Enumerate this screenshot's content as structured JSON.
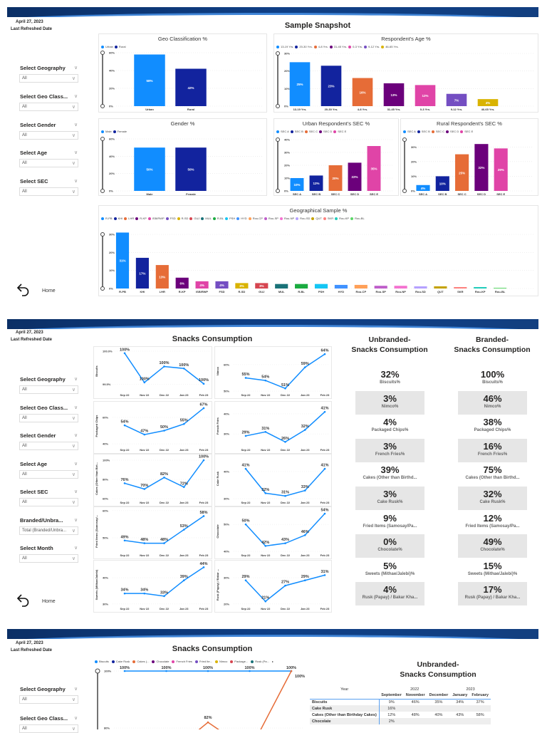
{
  "meta": {
    "date": "April 27, 2023",
    "refreshed_label": "Last Refreshed Date",
    "home_label": "Home"
  },
  "page1": {
    "title": "Sample Snapshot",
    "slicers": [
      {
        "label": "Select Geography",
        "value": "All"
      },
      {
        "label": "Select Geo Class...",
        "value": "All"
      },
      {
        "label": "Select Gender",
        "value": "All"
      },
      {
        "label": "Select Age",
        "value": "All"
      },
      {
        "label": "Select SEC",
        "value": "All"
      }
    ]
  },
  "page2": {
    "title": "Snacks Consumption",
    "slicers": [
      {
        "label": "Select Geography",
        "value": "All"
      },
      {
        "label": "Select Geo Class...",
        "value": "All"
      },
      {
        "label": "Select Gender",
        "value": "All"
      },
      {
        "label": "Select Age",
        "value": "All"
      },
      {
        "label": "Select SEC",
        "value": "All"
      },
      {
        "label": "Branded/Unbra...",
        "value": "Total (Branded/Unbra..."
      },
      {
        "label": "Select Month",
        "value": "All"
      }
    ],
    "unbranded_title": [
      "Unbranded-",
      "Snacks Consumption"
    ],
    "branded_title": [
      "Branded-",
      "Snacks Consumption"
    ],
    "kpi_labels": [
      "Biscuits%",
      "Nimco%",
      "Packaged Chips%",
      "French Fries%",
      "Cakes (Other than Birthd...",
      "Cake Rusk%",
      "Fried Items (Samosay/Pa...",
      "Chocolate%",
      "Sweets (Mithae/Jalebi)%",
      "Rusk (Papay) / Bakar Kha..."
    ],
    "unbranded_values": [
      "32%",
      "3%",
      "4%",
      "3%",
      "39%",
      "3%",
      "9%",
      "0%",
      "5%",
      "4%"
    ],
    "branded_values": [
      "100%",
      "46%",
      "38%",
      "16%",
      "75%",
      "32%",
      "12%",
      "49%",
      "15%",
      "17%"
    ]
  },
  "page3": {
    "title": "Snacks Consumption",
    "slicers": [
      {
        "label": "Select Geography",
        "value": "All"
      },
      {
        "label": "Select Geo Class...",
        "value": "All"
      }
    ],
    "table_title": [
      "Unbranded-",
      "Snacks Consumption"
    ],
    "table": {
      "year_header": "Year",
      "years": [
        {
          "label": "2022",
          "span": 3
        },
        {
          "label": "2023",
          "span": 2
        }
      ],
      "months": [
        "September",
        "November",
        "December",
        "January",
        "February"
      ],
      "rows": [
        {
          "name": "Biscuits",
          "values": [
            "9%",
            "46%",
            "35%",
            "34%",
            "37%"
          ]
        },
        {
          "name": "Cake Rusk",
          "values": [
            "16%",
            "",
            "",
            "",
            ""
          ]
        },
        {
          "name": "Cakes (Other than Birthday Cakes)",
          "values": [
            "12%",
            "48%",
            "40%",
            "43%",
            "58%"
          ]
        },
        {
          "name": "Chocolate",
          "values": [
            "2%",
            "",
            "",
            "",
            ""
          ]
        }
      ]
    }
  },
  "chart_data": [
    {
      "id": "geo",
      "type": "bar",
      "title": "Geo Classification %",
      "categories": [
        "Urban",
        "Rural"
      ],
      "values": [
        58,
        42
      ],
      "labels": [
        "58%",
        "42%"
      ],
      "colors": [
        "#118DFF",
        "#12239E"
      ],
      "legend": [
        "Urban",
        "Rural"
      ],
      "ylim": [
        0,
        60
      ],
      "ticks": [
        0,
        20,
        40,
        60
      ],
      "grid": true,
      "legend_position": "top-left"
    },
    {
      "id": "age",
      "type": "bar",
      "title": "Respondent's Age %",
      "categories": [
        "13-19 Yrs.",
        "20-30 Yrs.",
        "4-8 Yrs.",
        "31-45 Yrs.",
        "0-3 Yrs.",
        "9-12 Yrs.",
        "46-65 Yrs."
      ],
      "values": [
        25,
        23,
        16,
        13,
        12,
        7,
        4
      ],
      "labels": [
        "25%",
        "23%",
        "16%",
        "13%",
        "12%",
        "7%",
        "4%"
      ],
      "colors": [
        "#118DFF",
        "#12239E",
        "#E66C37",
        "#6B007B",
        "#E044A7",
        "#744EC2",
        "#D9B300"
      ],
      "legend": [
        "13-19 Yrs.",
        "20-30 Yrs.",
        "4-8 Yrs.",
        "31-45 Yrs.",
        "0-3 Yrs.",
        "9-12 Yrs.",
        "46-65 Yrs."
      ],
      "ylim": [
        0,
        30
      ],
      "ticks": [
        0,
        10,
        20,
        30
      ],
      "grid": true,
      "legend_position": "top-left"
    },
    {
      "id": "gender",
      "type": "bar",
      "title": "Gender %",
      "categories": [
        "Male",
        "Female"
      ],
      "values": [
        50,
        50
      ],
      "labels": [
        "50%",
        "50%"
      ],
      "colors": [
        "#118DFF",
        "#12239E"
      ],
      "legend": [
        "Male",
        "Female"
      ],
      "ylim": [
        0,
        60
      ],
      "ticks": [
        0,
        20,
        40,
        60
      ],
      "grid": true,
      "legend_position": "top-left"
    },
    {
      "id": "urban_sec",
      "type": "bar",
      "title": "Urban Respondent's SEC %",
      "categories": [
        "SEC A",
        "SEC B",
        "SEC C",
        "SEC D",
        "SEC E"
      ],
      "values": [
        10,
        12,
        20,
        22,
        35
      ],
      "labels": [
        "10%",
        "12%",
        "20%",
        "22%",
        "35%"
      ],
      "colors": [
        "#118DFF",
        "#12239E",
        "#E66C37",
        "#6B007B",
        "#E044A7"
      ],
      "legend": [
        "SEC A",
        "SEC B",
        "SEC C",
        "SEC D",
        "SEC E"
      ],
      "ylim": [
        0,
        40
      ],
      "ticks": [
        0,
        10,
        20,
        30,
        40
      ],
      "grid": true,
      "legend_position": "top-left"
    },
    {
      "id": "rural_sec",
      "type": "bar",
      "title": "Rural Respondent's SEC %",
      "categories": [
        "SEC A",
        "SEC B",
        "SEC C",
        "SEC D",
        "SEC E"
      ],
      "values": [
        4,
        10,
        25,
        32,
        29
      ],
      "labels": [
        "4%",
        "10%",
        "25%",
        "32%",
        "29%"
      ],
      "colors": [
        "#118DFF",
        "#12239E",
        "#E66C37",
        "#6B007B",
        "#E044A7"
      ],
      "legend": [
        "SEC A",
        "SEC B",
        "SEC C",
        "SEC D",
        "SEC E"
      ],
      "ylim": [
        0,
        35
      ],
      "ticks": [
        0,
        10,
        20,
        30
      ],
      "grid": true,
      "legend_position": "top-left"
    },
    {
      "id": "geo_sample",
      "type": "bar",
      "title": "Geographical Sample %",
      "categories": [
        "R-PB",
        "KHI",
        "LHR",
        "R-KP",
        "ISB/RWP",
        "FSD",
        "R-SD",
        "GUJ",
        "MUL",
        "R-BL",
        "PSH",
        "HYD",
        "Rou-CP",
        "Rou-SP",
        "Rou-NP",
        "Rou-SD",
        "QUT",
        "SKR",
        "Rou-KP",
        "Rou-BL"
      ],
      "values": [
        31,
        17,
        13,
        6,
        4,
        4,
        3,
        3,
        2.5,
        2.5,
        2.5,
        2,
        2,
        1.5,
        1.5,
        1.2,
        1.2,
        0.8,
        0.8,
        0.4
      ],
      "labels": [
        "31%",
        "17%",
        "13%",
        "6%",
        "4%",
        "4%",
        "3%",
        "3%",
        "",
        "",
        "",
        "",
        "",
        "",
        "",
        "",
        "",
        "",
        "",
        ""
      ],
      "colors": [
        "#118DFF",
        "#12239E",
        "#E66C37",
        "#6B007B",
        "#E044A7",
        "#744EC2",
        "#D9B300",
        "#D64550",
        "#197278",
        "#1AAB40",
        "#15C6F4",
        "#4092FF",
        "#FFA058",
        "#BE5DC9",
        "#F472D0",
        "#B5A1FF",
        "#C4A200",
        "#FD817E",
        "#22CCBB",
        "#5BD667"
      ],
      "legend": [
        "R-PB",
        "KHI",
        "LHR",
        "R-KP",
        "ISB/RWP",
        "FSD",
        "R-SD",
        "GUJ",
        "MUL",
        "R-BL",
        "PSH",
        "HYD",
        "Rou-CP",
        "Rou-SP",
        "Rou-NP",
        "Rou-SD",
        "QUT",
        "SKR",
        "Rou-KP",
        "Rou-BL"
      ],
      "ylim": [
        0,
        30
      ],
      "ticks": [
        0,
        10,
        20,
        30
      ],
      "grid": true,
      "legend_position": "top-left"
    },
    {
      "id": "l_biscuits",
      "type": "line",
      "ylabel": "Biscuits",
      "x": [
        "Sep 22",
        "Nov 22",
        "Dec 22",
        "Jan 23",
        "Feb 23"
      ],
      "values": [
        99.97,
        99.53,
        99.77,
        99.74,
        99.51
      ],
      "labels": [
        "100%",
        "100%",
        "100%",
        "100%",
        "100%"
      ],
      "ylim": [
        99.4,
        100.0
      ],
      "ticks": [
        99.5,
        100.0
      ],
      "tick_labels": [
        "99.5%",
        "100.0%"
      ],
      "color": "#118DFF"
    },
    {
      "id": "l_nimco",
      "type": "line",
      "ylabel": "Nimco",
      "x": [
        "Sep 22",
        "Nov 22",
        "Dec 22",
        "Jan 23",
        "Feb 23"
      ],
      "values": [
        55,
        54,
        51,
        59,
        64
      ],
      "labels": [
        "55%",
        "54%",
        "51%",
        "59%",
        "64%"
      ],
      "ylim": [
        50,
        65.1
      ],
      "ticks": [
        50,
        60
      ],
      "tick_labels": [
        "50%",
        "60%"
      ],
      "color": "#118DFF"
    },
    {
      "id": "l_chips",
      "type": "line",
      "ylabel": "Packaged Chips",
      "x": [
        "Sep 22",
        "Nov 22",
        "Dec 22",
        "Jan 23",
        "Feb 23"
      ],
      "values": [
        54,
        47,
        50,
        55,
        67
      ],
      "labels": [
        "54%",
        "47%",
        "50%",
        "55%",
        "67%"
      ],
      "ylim": [
        38.4,
        68.6
      ],
      "ticks": [
        40,
        60
      ],
      "tick_labels": [
        "40%",
        "60%"
      ],
      "color": "#118DFF"
    },
    {
      "id": "l_fries",
      "type": "line",
      "ylabel": "French Fries",
      "x": [
        "Sep 22",
        "Nov 22",
        "Dec 22",
        "Jan 23",
        "Feb 23"
      ],
      "values": [
        29,
        31,
        26,
        32,
        41
      ],
      "labels": [
        "29%",
        "31%",
        "26%",
        "32%",
        "41%"
      ],
      "ylim": [
        24,
        43.9
      ],
      "ticks": [
        30,
        40
      ],
      "tick_labels": [
        "30%",
        "40%"
      ],
      "color": "#118DFF"
    },
    {
      "id": "l_cakes",
      "type": "line",
      "ylabel": "Cakes (Other than Birt...",
      "x": [
        "Sep 22",
        "Nov 22",
        "Dec 22",
        "Jan 23",
        "Feb 23"
      ],
      "values": [
        76,
        70,
        82,
        72,
        100
      ],
      "labels": [
        "76%",
        "70%",
        "82%",
        "72%",
        "100%"
      ],
      "ylim": [
        60,
        101.5
      ],
      "ticks": [
        60,
        80,
        100
      ],
      "tick_labels": [
        "60%",
        "80%",
        "100%"
      ],
      "color": "#118DFF"
    },
    {
      "id": "l_cakerusk",
      "type": "line",
      "ylabel": "Cake Rusk",
      "x": [
        "Sep 22",
        "Nov 22",
        "Dec 22",
        "Jan 23",
        "Feb 23"
      ],
      "values": [
        41,
        32,
        31,
        33,
        41
      ],
      "labels": [
        "41%",
        "32%",
        "31%",
        "33%",
        "41%"
      ],
      "ylim": [
        30,
        44.7
      ],
      "ticks": [
        30,
        40
      ],
      "tick_labels": [
        "30%",
        "40%"
      ],
      "color": "#118DFF"
    },
    {
      "id": "l_fried",
      "type": "line",
      "ylabel": "Fried Items (Samosay/...",
      "x": [
        "Sep 22",
        "Nov 22",
        "Dec 22",
        "Jan 23",
        "Feb 23"
      ],
      "values": [
        49,
        48,
        48,
        53,
        58
      ],
      "labels": [
        "49%",
        "48%",
        "48%",
        "53%",
        "58%"
      ],
      "ylim": [
        45,
        59.7
      ],
      "ticks": [
        50,
        60
      ],
      "tick_labels": [
        "50%",
        "60%"
      ],
      "color": "#118DFF"
    },
    {
      "id": "l_choc",
      "type": "line",
      "ylabel": "Chocolate",
      "x": [
        "Sep 22",
        "Nov 22",
        "Dec 22",
        "Jan 23",
        "Feb 23"
      ],
      "values": [
        50,
        42,
        43,
        46,
        54
      ],
      "labels": [
        "50%",
        "42%",
        "43%",
        "46%",
        "54%"
      ],
      "ylim": [
        40,
        54.8
      ],
      "ticks": [
        40,
        50
      ],
      "tick_labels": [
        "40%",
        "50%"
      ],
      "color": "#118DFF"
    },
    {
      "id": "l_sweets",
      "type": "line",
      "ylabel": "Sweets (Mithae/Jalebi)",
      "x": [
        "Sep 22",
        "Nov 22",
        "Dec 22",
        "Jan 23",
        "Feb 23"
      ],
      "values": [
        34,
        34,
        33,
        39,
        44
      ],
      "labels": [
        "34%",
        "34%",
        "33%",
        "39%",
        "44%"
      ],
      "ylim": [
        29.7,
        44.9
      ],
      "ticks": [
        30,
        40
      ],
      "tick_labels": [
        "30%",
        "40%"
      ],
      "color": "#118DFF"
    },
    {
      "id": "l_rusk",
      "type": "line",
      "ylabel": "Rusk (Papay) / Bakar ...",
      "x": [
        "Sep 22",
        "Nov 22",
        "Dec 22",
        "Jan 23",
        "Feb 23"
      ],
      "values": [
        29,
        21,
        27,
        29,
        31
      ],
      "labels": [
        "29%",
        "21%",
        "27%",
        "29%",
        "31%"
      ],
      "ylim": [
        19.7,
        34.9
      ],
      "ticks": [
        20,
        30
      ],
      "tick_labels": [
        "20%",
        "30%"
      ],
      "color": "#118DFF"
    },
    {
      "id": "multi",
      "type": "line",
      "legend": [
        {
          "name": "Biscuits",
          "color": "#118DFF"
        },
        {
          "name": "Cake Rusk",
          "color": "#12239E"
        },
        {
          "name": "Cakes (...",
          "color": "#E66C37"
        },
        {
          "name": "Chocolate",
          "color": "#6B007B"
        },
        {
          "name": "French Fries",
          "color": "#E044A7"
        },
        {
          "name": "Fried Ite...",
          "color": "#744EC2"
        },
        {
          "name": "Nimco",
          "color": "#D9B300"
        },
        {
          "name": "Package...",
          "color": "#D64550"
        },
        {
          "name": "Rusk (Pa...",
          "color": "#197278"
        }
      ],
      "x": [
        "Sep 22",
        "Nov 22",
        "Dec 22",
        "Jan 23",
        "Feb 23"
      ],
      "series": [
        {
          "name": "Biscuits",
          "values": [
            100,
            100,
            100,
            100,
            100
          ],
          "labels": [
            "100%",
            "100%",
            "100%",
            "100%",
            "100%"
          ],
          "color": "#118DFF"
        },
        {
          "name": "Cakes (...",
          "values": [
            76,
            70,
            82,
            72,
            100
          ],
          "labels": [
            "",
            "",
            "82%",
            "",
            "100%"
          ],
          "color": "#E66C37"
        }
      ],
      "ticks": [
        80,
        100
      ],
      "tick_labels": [
        "80%",
        "100%"
      ]
    }
  ]
}
